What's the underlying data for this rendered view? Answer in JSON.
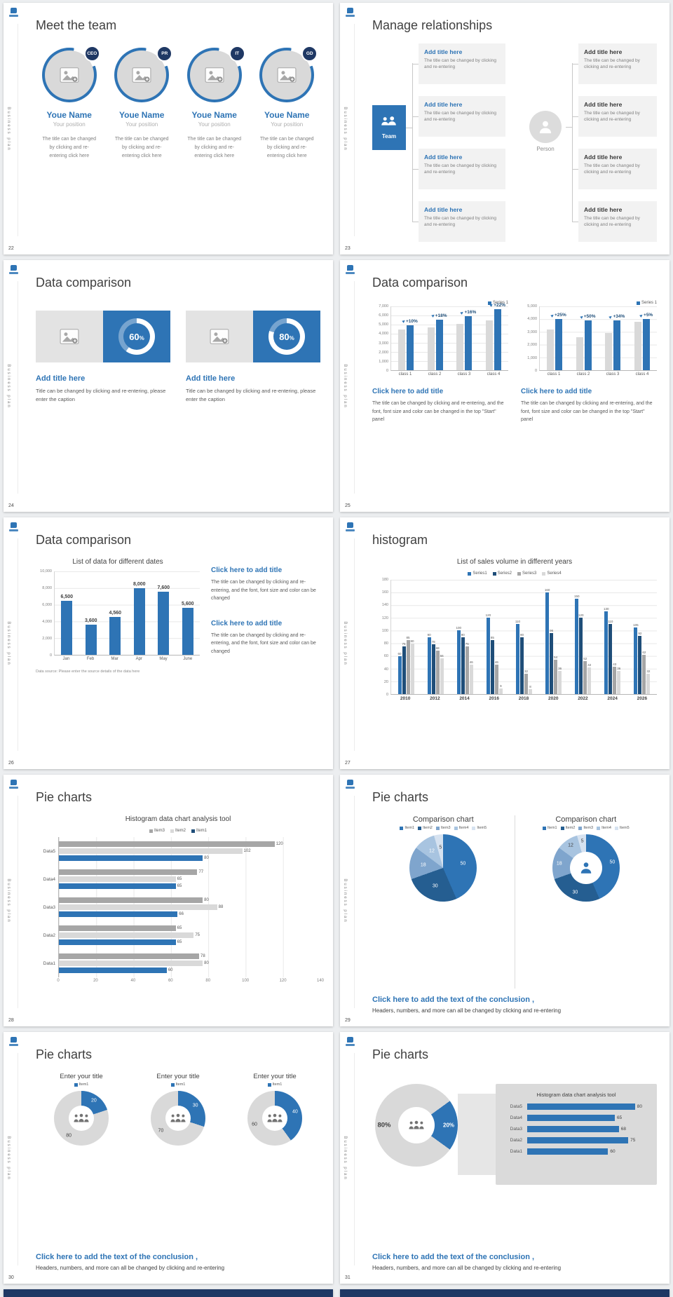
{
  "chrome": {
    "vertical_text": "Business plan",
    "accent": "#2e74b5",
    "dark_accent": "#1f3864"
  },
  "conclusion": {
    "heading": "Click here to add the text of the conclusion ,",
    "body": "Headers, numbers, and more can all be changed by clicking and re-entering"
  },
  "slides": [
    {
      "number": "22",
      "title": "Meet the team",
      "members": [
        {
          "badge": "CEO",
          "name": "Youe Name",
          "position": "Your position",
          "desc": "The title can be changed by clicking and re-entering click here"
        },
        {
          "badge": "PR",
          "name": "Youe Name",
          "position": "Your position",
          "desc": "The title can be changed by clicking and re-entering click here"
        },
        {
          "badge": "IT",
          "name": "Youe Name",
          "position": "Your position",
          "desc": "The title can be changed by clicking and re-entering click here"
        },
        {
          "badge": "GD",
          "name": "Youe Name",
          "position": "Your position",
          "desc": "The title can be changed by clicking and re-entering click here"
        }
      ]
    },
    {
      "number": "23",
      "title": "Manage relationships",
      "team_label": "Team",
      "person_label": "Person",
      "left_items": [
        {
          "title": "Add title here",
          "desc": "The title can be changed by clicking and re-entering"
        },
        {
          "title": "Add title here",
          "desc": "The title can be changed by clicking and re-entering"
        },
        {
          "title": "Add title here",
          "desc": "The title can be changed by clicking and re-entering"
        },
        {
          "title": "Add title here",
          "desc": "The title can be changed by clicking and re-entering"
        }
      ],
      "right_items": [
        {
          "title": "Add title here",
          "desc": "The title can be changed by clicking and re-entering"
        },
        {
          "title": "Add title here",
          "desc": "The title can be changed by clicking and re-entering"
        },
        {
          "title": "Add title here",
          "desc": "The title can be changed by clicking and re-entering"
        },
        {
          "title": "Add title here",
          "desc": "The title can be changed by clicking and re-entering"
        }
      ]
    },
    {
      "number": "24",
      "title": "Data comparison",
      "cards": [
        {
          "percent": 60,
          "percent_label": "60",
          "heading": "Add title here",
          "caption": "Title can be changed by clicking and re-entering, please enter the caption"
        },
        {
          "percent": 80,
          "percent_label": "80",
          "heading": "Add title here",
          "caption": "Title can be changed by clicking and re-entering, please enter the caption"
        }
      ]
    },
    {
      "number": "25",
      "title": "Data comparison",
      "charts": [
        {
          "type": "column-pair",
          "legend": "Series 1",
          "categories": [
            "class 1",
            "class 2",
            "class 3",
            "class 4"
          ],
          "series": [
            {
              "name": "base",
              "values": [
                4500,
                4700,
                5100,
                5500
              ]
            },
            {
              "name": "growth",
              "values": [
                4950,
                5550,
                5900,
                6700
              ]
            }
          ],
          "annotations": [
            "+10%",
            "+18%",
            "+16%",
            "+22%"
          ],
          "ymax": 7000,
          "yticks": [
            "7,000",
            "6,000",
            "5,000",
            "4,000",
            "3,000",
            "2,000",
            "1,000",
            "0"
          ],
          "heading": "Click here to add title",
          "caption": "The title can be changed by clicking and re-entering, and the font, font size and color can be changed in the top \"Start\" panel"
        },
        {
          "type": "column-pair",
          "legend": "Series 1",
          "categories": [
            "class 1",
            "class 2",
            "class 3",
            "class 4"
          ],
          "series": [
            {
              "name": "base",
              "values": [
                3200,
                2600,
                2900,
                3800
              ]
            },
            {
              "name": "growth",
              "values": [
                4000,
                3900,
                3890,
                3990
              ]
            }
          ],
          "annotations": [
            "+25%",
            "+50%",
            "+34%",
            "+5%"
          ],
          "ymax": 5000,
          "yticks": [
            "5,000",
            "4,000",
            "3,000",
            "2,000",
            "1,000",
            "0"
          ],
          "heading": "Click here to add title",
          "caption": "The title can be changed by clicking and re-entering, and the font, font size and color can be changed in the top \"Start\" panel"
        }
      ]
    },
    {
      "number": "26",
      "title": "Data comparison",
      "chart": {
        "type": "bar",
        "title": "List of data for different dates",
        "categories": [
          "Jan",
          "Feb",
          "Mar",
          "Apr",
          "May",
          "June"
        ],
        "values": [
          6500,
          3600,
          4560,
          8000,
          7600,
          5600
        ],
        "labels": [
          "6,500",
          "3,600",
          "4,560",
          "8,000",
          "7,600",
          "5,600"
        ],
        "ymax": 10000,
        "yticks": [
          "10,000",
          "8,000",
          "6,000",
          "4,000",
          "2,000",
          "0"
        ],
        "source_note": "Data source: Please enter the source details of the data here"
      },
      "blocks": [
        {
          "heading": "Click here to add title",
          "caption": "The title can be changed by clicking and re-entering, and the font, font size and color can be changed"
        },
        {
          "heading": "Click here to add title",
          "caption": "The title can be changed by clicking and re-entering, and the font, font size and color can be changed"
        }
      ]
    },
    {
      "number": "27",
      "title": "histogram",
      "chart": {
        "type": "grouped-bar",
        "title": "List of sales volume in different years",
        "legend": [
          "Series1",
          "Series2",
          "Series3",
          "Series4"
        ],
        "colors": [
          "#2e74b5",
          "#1f4e79",
          "#a6a6a6",
          "#d9d9d9"
        ],
        "categories": [
          "2010",
          "2012",
          "2014",
          "2016",
          "2018",
          "2020",
          "2022",
          "2024",
          "2026"
        ],
        "series": [
          {
            "name": "Series1",
            "values": [
              60,
              90,
              100,
              120,
              110,
              160,
              150,
              130,
              105
            ]
          },
          {
            "name": "Series2",
            "values": [
              75,
              78,
              90,
              85,
              90,
              96,
              120,
              110,
              92
            ]
          },
          {
            "name": "Series3",
            "values": [
              85,
              68,
              75,
              46,
              32,
              54,
              52,
              43,
              62
            ]
          },
          {
            "name": "Series4",
            "values": [
              80,
              56,
              46,
              9,
              8,
              36,
              42,
              36,
              32
            ]
          }
        ],
        "ymax": 180,
        "yticks": [
          "180",
          "160",
          "140",
          "120",
          "100",
          "80",
          "60",
          "40",
          "20",
          "0"
        ]
      }
    },
    {
      "number": "28",
      "title": "Pie charts",
      "chart": {
        "type": "hbar-grouped",
        "title": "Histogram data chart analysis tool",
        "legend": [
          "Item3",
          "Item2",
          "Item1"
        ],
        "legend_colors": [
          "#a6a6a6",
          "#d9d9d9",
          "#1f4e79"
        ],
        "colors": [
          "#a6a6a6",
          "#d9d9d9",
          "#2e74b5"
        ],
        "categories": [
          "Data5",
          "Data4",
          "Data3",
          "Data2",
          "Data1"
        ],
        "series": [
          {
            "name": "Item3",
            "values": [
              120,
              77,
              80,
              65,
              78
            ]
          },
          {
            "name": "Item2",
            "values": [
              102,
              65,
              88,
              75,
              80
            ]
          },
          {
            "name": "Item1",
            "values": [
              80,
              65,
              66,
              65,
              60
            ]
          }
        ],
        "xmax": 140,
        "xticks": [
          "0",
          "20",
          "40",
          "60",
          "80",
          "100",
          "120",
          "140"
        ]
      }
    },
    {
      "number": "29",
      "title": "Pie charts",
      "left": {
        "type": "pie",
        "title": "Comparison chart",
        "legend": [
          "Item1",
          "Item2",
          "Item3",
          "Item4",
          "Item5"
        ],
        "colors": [
          "#2e74b5",
          "#255e91",
          "#7fa5cd",
          "#a8c4e0",
          "#d6e2f0"
        ],
        "values": [
          50,
          30,
          18,
          12,
          5
        ],
        "dark_labels": [
          4
        ],
        "donut": false
      },
      "right": {
        "type": "donut",
        "title": "Comparison chart",
        "legend": [
          "Item1",
          "Item2",
          "Item3",
          "Item4",
          "Item5"
        ],
        "colors": [
          "#2e74b5",
          "#255e91",
          "#7fa5cd",
          "#a8c4e0",
          "#d6e2f0"
        ],
        "values": [
          50,
          30,
          18,
          12,
          5
        ],
        "dark_labels": [
          3,
          4
        ],
        "donut": true
      }
    },
    {
      "number": "30",
      "title": "Pie charts",
      "donuts": [
        {
          "title": "Enter your title",
          "legend": "Item1",
          "value": 20,
          "rest": 80
        },
        {
          "title": "Enter your title",
          "legend": "Item1",
          "value": 30,
          "rest": 70
        },
        {
          "title": "Enter your title",
          "legend": "Item1",
          "value": 40,
          "rest": 60
        }
      ]
    },
    {
      "number": "31",
      "title": "Pie charts",
      "donut": {
        "value": 20,
        "rest": 80,
        "value_label": "20%",
        "rest_label": "80%"
      },
      "panel": {
        "title": "Histogram data chart analysis tool",
        "categories": [
          "Data5",
          "Data4",
          "Data3",
          "Data2",
          "Data1"
        ],
        "values": [
          80,
          65,
          68,
          75,
          60
        ],
        "xmax": 90
      }
    }
  ]
}
